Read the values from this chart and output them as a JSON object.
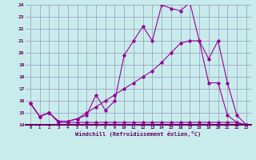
{
  "xlabel": "Windchill (Refroidissement éolien,°C)",
  "bg_color": "#c8ecec",
  "line_color": "#990099",
  "grid_color": "#9999bb",
  "xmin": 0,
  "xmax": 23,
  "ymin": 14,
  "ymax": 24,
  "series1_x": [
    0,
    1,
    2,
    3,
    4,
    5,
    6,
    7,
    8,
    9,
    10,
    11,
    12,
    13,
    14,
    15,
    16,
    17,
    18,
    19,
    20,
    21,
    22,
    23
  ],
  "series1_y": [
    15.8,
    14.7,
    15.0,
    14.2,
    14.2,
    14.2,
    14.2,
    14.2,
    14.2,
    14.2,
    14.2,
    14.2,
    14.2,
    14.2,
    14.2,
    14.2,
    14.2,
    14.2,
    14.2,
    14.2,
    14.2,
    14.2,
    14.2,
    14.0
  ],
  "series2_x": [
    0,
    1,
    2,
    3,
    4,
    5,
    6,
    7,
    8,
    9,
    10,
    11,
    12,
    13,
    14,
    15,
    16,
    17,
    18,
    19,
    20,
    21,
    22,
    23
  ],
  "series2_y": [
    15.8,
    14.7,
    15.0,
    14.3,
    14.3,
    14.5,
    15.0,
    15.5,
    16.0,
    16.5,
    17.0,
    17.5,
    18.0,
    18.5,
    19.2,
    20.0,
    20.8,
    21.0,
    21.0,
    17.5,
    17.5,
    14.8,
    14.2,
    14.0
  ],
  "series3_x": [
    0,
    1,
    2,
    3,
    4,
    5,
    6,
    7,
    8,
    9,
    10,
    11,
    12,
    13,
    14,
    15,
    16,
    17,
    18,
    19,
    20,
    21,
    22,
    23
  ],
  "series3_y": [
    15.8,
    14.7,
    15.0,
    14.3,
    14.3,
    14.5,
    14.8,
    16.5,
    15.2,
    16.0,
    19.8,
    21.0,
    22.2,
    21.0,
    24.0,
    23.7,
    23.5,
    24.2,
    21.0,
    19.5,
    21.0,
    17.5,
    14.8,
    14.0
  ]
}
